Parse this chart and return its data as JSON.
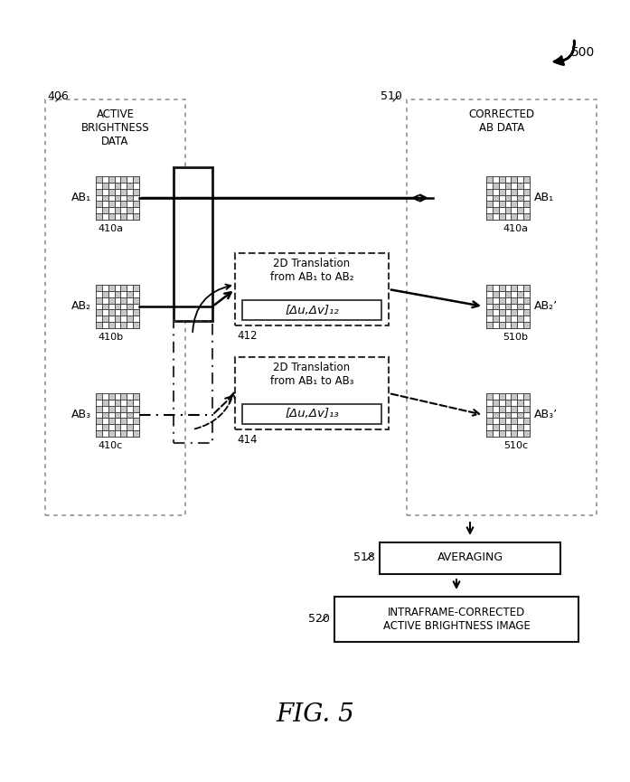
{
  "title": "FIG. 5",
  "fig_label": "500",
  "left_box_label": "406",
  "left_box_title": "ACTIVE\nBRIGHTNESS\nDATA",
  "right_box_label": "510",
  "right_box_title": "CORRECTED\nAB DATA",
  "ab_labels_left": [
    "AB₁",
    "AB₂",
    "AB₃"
  ],
  "ab_sublabels_left": [
    "410a",
    "410b",
    "410c"
  ],
  "ab_labels_right": [
    "AB₁",
    "AB₂’",
    "AB₃’"
  ],
  "ab_sublabels_right": [
    "410a",
    "510b",
    "510c"
  ],
  "trans_box1_label": "412",
  "trans_box1_line1": "2D Translation",
  "trans_box1_line2": "from AB₁ to AB₂",
  "trans_box1_formula": "[Δu,Δv]₁₂",
  "trans_box2_label": "414",
  "trans_box2_line1": "2D Translation",
  "trans_box2_line2": "from AB₁ to AB₃",
  "trans_box2_formula": "[Δu,Δv]₁₃",
  "avg_box_label": "518",
  "avg_box_text": "AVERAGING",
  "final_box_label": "520",
  "final_box_text": "INTRAFRAME-CORRECTED\nACTIVE BRIGHTNESS IMAGE",
  "bg_color": "#ffffff"
}
